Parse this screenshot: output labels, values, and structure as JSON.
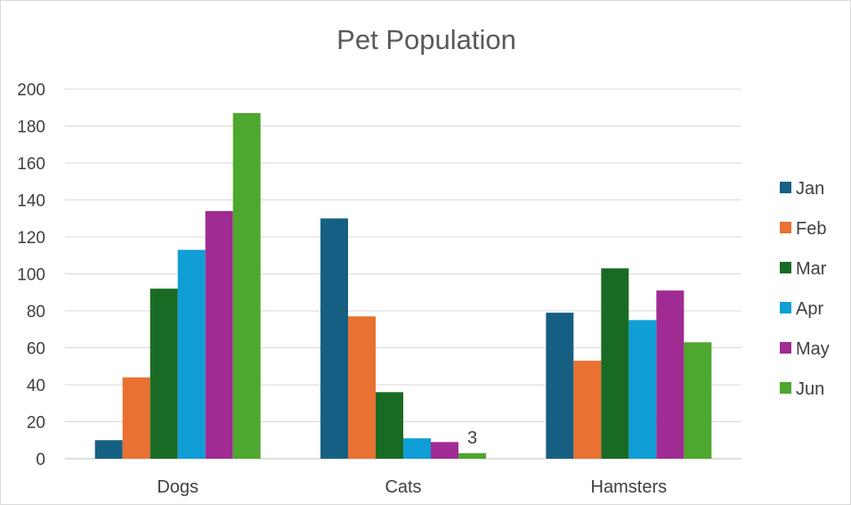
{
  "chart_data": {
    "type": "bar",
    "title": "Pet Population",
    "xlabel": "",
    "ylabel": "",
    "categories": [
      "Dogs",
      "Cats",
      "Hamsters"
    ],
    "ylim": [
      0,
      200
    ],
    "yticks": [
      0,
      20,
      40,
      60,
      80,
      100,
      120,
      140,
      160,
      180,
      200
    ],
    "grid": true,
    "legend_position": "right",
    "series": [
      {
        "name": "Jan",
        "color": "#156082",
        "values": [
          10,
          130,
          79
        ]
      },
      {
        "name": "Feb",
        "color": "#E97132",
        "values": [
          44,
          77,
          53
        ]
      },
      {
        "name": "Mar",
        "color": "#196B24",
        "values": [
          92,
          36,
          103
        ]
      },
      {
        "name": "Apr",
        "color": "#0F9ED5",
        "values": [
          113,
          11,
          75
        ]
      },
      {
        "name": "May",
        "color": "#A02B93",
        "values": [
          134,
          9,
          91
        ]
      },
      {
        "name": "Jun",
        "color": "#4EA72E",
        "values": [
          187,
          3,
          63
        ]
      }
    ],
    "data_labels": [
      {
        "series": "Jun",
        "category": "Cats",
        "text": "3"
      }
    ]
  }
}
